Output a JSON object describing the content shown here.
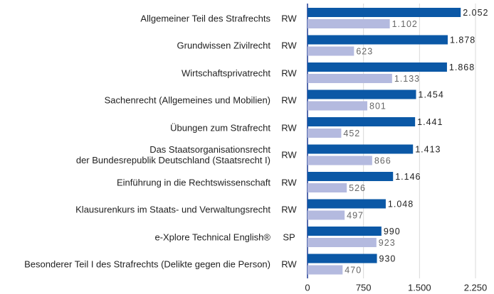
{
  "chart_data": {
    "type": "bar",
    "orientation": "horizontal",
    "categories": [
      "Allgemeiner Teil des Strafrechts",
      "Grundwissen Zivilrecht",
      "Wirtschaftsprivatrecht",
      "Sachenrecht (Allgemeines und Mobilien)",
      "Übungen zum Strafrecht",
      "Das Staatsorganisationsrecht\nder Bundesrepublik Deutschland (Staatsrecht I)",
      "Einführung in die Rechtswissenschaft",
      "Klausurenkurs im Staats- und Verwaltungsrecht",
      "e-Xplore Technical English®",
      "Besonderer Teil I des Strafrechts (Delikte gegen die Person)"
    ],
    "codes": [
      "RW",
      "RW",
      "RW",
      "RW",
      "RW",
      "RW",
      "RW",
      "RW",
      "SP",
      "RW"
    ],
    "series": [
      {
        "color": "#0b58a6",
        "values": [
          2052,
          1878,
          1868,
          1454,
          1441,
          1413,
          1146,
          1048,
          990,
          930
        ],
        "value_labels": [
          "2.052",
          "1.878",
          "1.868",
          "1.454",
          "1.441",
          "1.413",
          "1.146",
          "1.048",
          "990",
          "930"
        ]
      },
      {
        "color": "#b4badf",
        "values": [
          1102,
          623,
          1133,
          801,
          452,
          866,
          526,
          497,
          923,
          470
        ],
        "value_labels": [
          "1.102",
          "623",
          "1.133",
          "801",
          "452",
          "866",
          "526",
          "497",
          "923",
          "470"
        ]
      }
    ],
    "xlim": [
      0,
      2250
    ],
    "xticks": [
      0,
      750,
      {
        "value": 1500,
        "label": "1.500"
      },
      {
        "value": 2250,
        "label": "2.250"
      }
    ],
    "grid": true
  }
}
